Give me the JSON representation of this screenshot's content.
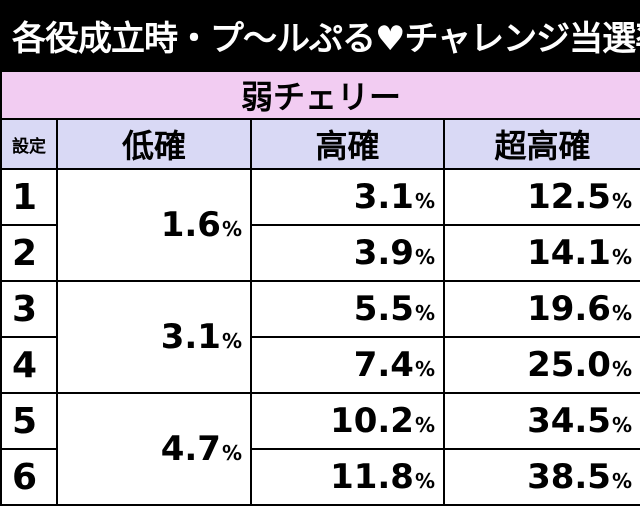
{
  "title": "各役成立時・プ～ルぷる♥チャレンジ当選率",
  "subtitle": "弱チェリー",
  "headers": {
    "setting": "設定",
    "low": "低確",
    "high": "高確",
    "super_high": "超高確"
  },
  "percent_sign": "%",
  "low_groups": [
    {
      "value": "1.6"
    },
    {
      "value": "3.1"
    },
    {
      "value": "4.7"
    }
  ],
  "rows": [
    {
      "setting": "1",
      "high": "3.1",
      "super_high": "12.5"
    },
    {
      "setting": "2",
      "high": "3.9",
      "super_high": "14.1"
    },
    {
      "setting": "3",
      "high": "5.5",
      "super_high": "19.6"
    },
    {
      "setting": "4",
      "high": "7.4",
      "super_high": "25.0"
    },
    {
      "setting": "5",
      "high": "10.2",
      "super_high": "34.5"
    },
    {
      "setting": "6",
      "high": "11.8",
      "super_high": "38.5"
    }
  ]
}
